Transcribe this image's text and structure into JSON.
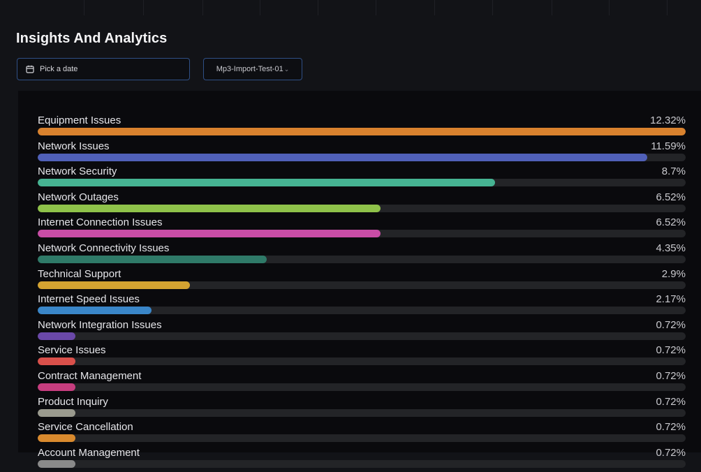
{
  "page": {
    "title": "Insights And Analytics"
  },
  "filters": {
    "date_label": "Pick a date",
    "project_label": "Mp3-Import-Test-01",
    "project_chevron": "⌄"
  },
  "chart_data": {
    "type": "bar",
    "orientation": "horizontal",
    "xlim": [
      0,
      12.32
    ],
    "categories": [
      "Equipment Issues",
      "Network Issues",
      "Network Security",
      "Network Outages",
      "Internet Connection Issues",
      "Network Connectivity Issues",
      "Technical Support",
      "Internet Speed Issues",
      "Network Integration Issues",
      "Service Issues",
      "Contract Management",
      "Product Inquiry",
      "Service Cancellation",
      "Account Management"
    ],
    "values": [
      12.32,
      11.59,
      8.7,
      6.52,
      6.52,
      4.35,
      2.9,
      2.17,
      0.72,
      0.72,
      0.72,
      0.72,
      0.72,
      0.72
    ],
    "value_labels": [
      "12.32%",
      "11.59%",
      "8.7%",
      "6.52%",
      "6.52%",
      "4.35%",
      "2.9%",
      "2.17%",
      "0.72%",
      "0.72%",
      "0.72%",
      "0.72%",
      "0.72%",
      "0.72%"
    ],
    "colors": [
      "#d9822e",
      "#5060b8",
      "#46b392",
      "#8fc24a",
      "#c94da6",
      "#2f7a68",
      "#d4a331",
      "#3a86c8",
      "#6a48a8",
      "#d9504b",
      "#c63d7e",
      "#9a9a8e",
      "#d98a2e",
      "#8a8a8a"
    ]
  }
}
